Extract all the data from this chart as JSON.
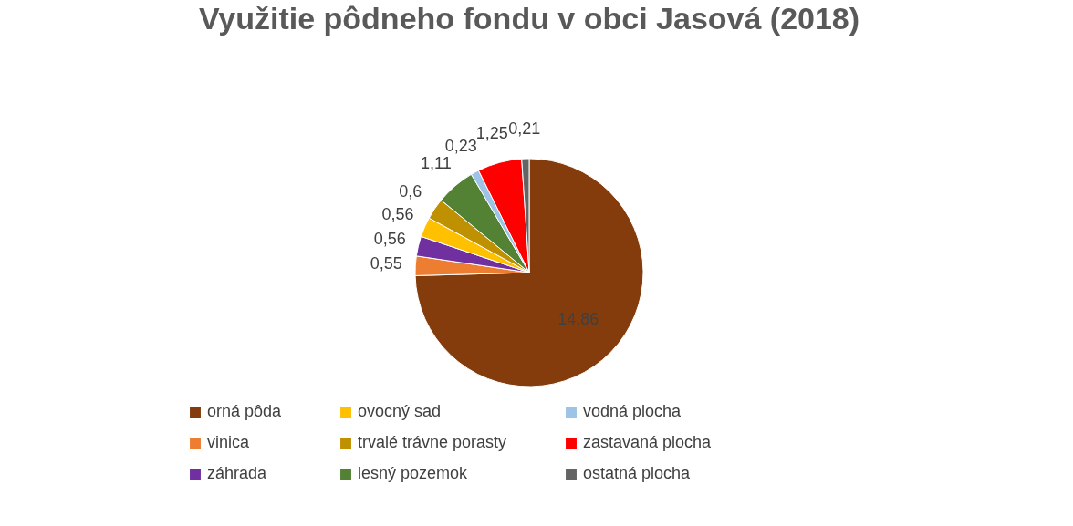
{
  "chart_data": {
    "type": "pie",
    "title": "Využitie pôdneho fondu v obci Jasová (2018)",
    "categories": [
      "orná pôda",
      "vinica",
      "záhrada",
      "ovocný sad",
      "trvalé trávne porasty",
      "lesný pozemok",
      "vodná plocha",
      "zastavaná plocha",
      "ostatná plocha"
    ],
    "values": [
      14.86,
      0.55,
      0.56,
      0.56,
      0.6,
      1.11,
      0.23,
      1.25,
      0.21
    ],
    "colors": [
      "#843c0c",
      "#ed7d31",
      "#7030a0",
      "#ffc000",
      "#bf9000",
      "#548235",
      "#9dc3e6",
      "#ff0000",
      "#646464"
    ],
    "value_labels": [
      "14,86",
      "0,55",
      "0,56",
      "0,56",
      "0,6",
      "1,11",
      "0,23",
      "1,25",
      "0,21"
    ],
    "legend": "bottom"
  }
}
